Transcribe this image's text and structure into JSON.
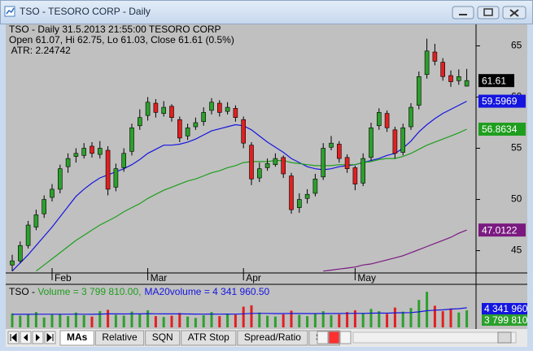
{
  "window": {
    "title": "TSO - TESORO CORP - Daily"
  },
  "tabs": [
    "MAs",
    "Relative",
    "SQN",
    "ATR Stop",
    "Spread/Ratio",
    "She"
  ],
  "chart_data": [
    {
      "type": "candlestick",
      "header": [
        "TSO - Daily 31.5.2013 21:55:00  TESORO CORP",
        "Open 61.07, Hi 62.75, Lo 61.03, Close 61.61 (0.5%)",
        " ATR: 2.24742"
      ],
      "categories": [
        null,
        null,
        null,
        null,
        null,
        "Feb",
        null,
        null,
        null,
        null,
        null,
        null,
        null,
        null,
        null,
        null,
        null,
        "Mar",
        null,
        null,
        null,
        null,
        null,
        null,
        null,
        null,
        null,
        null,
        null,
        "Apr",
        null,
        null,
        null,
        null,
        null,
        null,
        null,
        null,
        null,
        null,
        null,
        null,
        null,
        "May",
        null,
        null,
        null,
        null,
        null,
        null,
        null,
        null,
        null,
        null,
        null,
        null,
        null,
        null
      ],
      "open": [
        43.6,
        44,
        45.5,
        47.3,
        48.6,
        50.2,
        51,
        53.2,
        54.2,
        54.3,
        55.2,
        54.4,
        54.8,
        51.2,
        53.1,
        54.7,
        57.2,
        58.2,
        59.4,
        58.4,
        59.1,
        57.8,
        56.2,
        57.1,
        57.6,
        58.7,
        59.4,
        58.6,
        58.9,
        57.8,
        55.3,
        52.1,
        53.1,
        53.4,
        54.1,
        52.3,
        49.2,
        50.1,
        50.6,
        52.2,
        55.1,
        55.4,
        54.1,
        53.1,
        51.6,
        54.1,
        57.2,
        58.4,
        56.8,
        54.6,
        57.1,
        59.2,
        62.2,
        64.4,
        63.4,
        62.1,
        61.6,
        61.07
      ],
      "high": [
        44.6,
        45.9,
        47.9,
        49,
        50.4,
        51.5,
        53.4,
        54.5,
        55,
        55.5,
        55.6,
        55.7,
        55.2,
        53.5,
        55,
        57.4,
        58.8,
        60,
        59.8,
        59.6,
        59.3,
        58.1,
        57.4,
        58,
        59,
        59.9,
        59.7,
        59.5,
        59.2,
        58.1,
        55.6,
        53.6,
        54,
        54.5,
        54.3,
        52.6,
        50.6,
        51,
        52.5,
        55.5,
        56.2,
        55.7,
        54.4,
        53.3,
        54.5,
        57.5,
        58.9,
        58.7,
        57.1,
        57.4,
        59.4,
        62.5,
        65.7,
        65.2,
        63.8,
        62.6,
        62.7,
        62.75
      ],
      "low": [
        43,
        43.8,
        45.2,
        47,
        48.2,
        49.8,
        50.6,
        52.6,
        53.6,
        54,
        54.1,
        54,
        50.4,
        50.8,
        52.7,
        54.3,
        56.8,
        57.7,
        58,
        58.1,
        57.6,
        55.6,
        55.8,
        56.8,
        57.2,
        58.3,
        58.1,
        58.3,
        57.6,
        55,
        51.4,
        51.7,
        52.8,
        53.2,
        52.1,
        48.6,
        48.7,
        49.6,
        50.3,
        51.9,
        54.8,
        53.6,
        52.6,
        50.9,
        51.3,
        53.8,
        56.8,
        56.6,
        54,
        54.3,
        56.8,
        58.8,
        61.8,
        63.1,
        61.6,
        61,
        61.2,
        61.03
      ],
      "close": [
        44,
        45.5,
        47.5,
        48.5,
        50,
        51,
        53,
        54,
        54.5,
        55,
        54.5,
        55,
        51,
        53,
        54.5,
        57,
        58,
        59.5,
        58.5,
        59,
        58,
        56,
        57,
        57.5,
        58.5,
        59.5,
        58.5,
        59,
        58,
        55.5,
        52,
        53,
        53.5,
        54,
        52.5,
        49,
        50,
        50.5,
        52,
        55,
        55.5,
        54,
        53,
        51.5,
        54,
        57,
        58.5,
        57,
        54.5,
        57,
        59,
        62,
        64.5,
        63.5,
        62,
        61.5,
        62,
        61.61
      ],
      "up_color": "#2ca02c",
      "down_color": "#e02020",
      "last_color": "#000000",
      "series": [
        {
          "color": "#1515e0",
          "values": [
            43.0,
            43.8,
            44.6,
            45.5,
            46.4,
            47.3,
            48.3,
            49.3,
            50.3,
            51.0,
            51.6,
            52.1,
            52.4,
            52.7,
            53.0,
            53.4,
            53.9,
            54.5,
            54.9,
            55.3,
            55.3,
            55.4,
            55.6,
            55.9,
            56.3,
            56.7,
            56.9,
            57.1,
            57.3,
            57.2,
            56.8,
            56.2,
            55.6,
            55.1,
            54.6,
            54.0,
            53.6,
            53.2,
            53.0,
            52.9,
            53.0,
            53.2,
            53.3,
            53.4,
            53.6,
            53.8,
            54.0,
            54.3,
            54.5,
            55.0,
            55.7,
            56.6,
            57.3,
            57.9,
            58.4,
            58.8,
            59.2,
            59.5969
          ]
        },
        {
          "color": "#1e9e1e",
          "values": [
            null,
            null,
            null,
            43.0,
            43.6,
            44.2,
            44.8,
            45.4,
            46.0,
            46.5,
            47.0,
            47.5,
            47.9,
            48.3,
            48.8,
            49.2,
            49.6,
            50.1,
            50.5,
            50.9,
            51.2,
            51.5,
            51.8,
            52.0,
            52.3,
            52.6,
            52.8,
            53.1,
            53.3,
            53.6,
            53.7,
            53.7,
            53.7,
            53.8,
            53.8,
            53.6,
            53.5,
            53.4,
            53.3,
            53.3,
            53.3,
            53.4,
            53.4,
            53.4,
            53.6,
            53.7,
            53.9,
            54.0,
            54.0,
            54.2,
            54.5,
            54.9,
            55.3,
            55.6,
            55.9,
            56.2,
            56.5,
            56.8634
          ]
        },
        {
          "color": "#7a1a80",
          "values": [
            null,
            null,
            null,
            null,
            null,
            null,
            null,
            null,
            null,
            null,
            null,
            null,
            null,
            null,
            null,
            null,
            null,
            null,
            null,
            null,
            null,
            null,
            null,
            null,
            null,
            null,
            null,
            null,
            null,
            null,
            null,
            null,
            null,
            null,
            null,
            null,
            null,
            null,
            null,
            43.0,
            43.1,
            43.2,
            43.3,
            43.4,
            43.6,
            43.7,
            43.9,
            44.1,
            44.3,
            44.5,
            44.8,
            45.1,
            45.4,
            45.7,
            46.0,
            46.3,
            46.7,
            47.0122
          ]
        }
      ],
      "ylim": [
        42.9,
        67.1
      ],
      "yticks": [
        45,
        50,
        55,
        60,
        65
      ],
      "grid": false
    },
    {
      "type": "bar",
      "title_parts": [
        "TSO - ",
        "Volume = 3 799 810.00,",
        "MA20volume = 4 341 960.50"
      ],
      "series": [
        {
          "type": "bar",
          "color": "#2ca02c",
          "values": [
            3100000,
            2600000,
            2900000,
            3400000,
            2200000,
            2800000,
            3000000,
            2500000,
            3300000,
            2700000,
            2400000,
            3600000,
            3900000,
            2800000,
            2600000,
            3500000,
            2900000,
            3800000,
            2500000,
            2300000,
            2600000,
            3200000,
            2400000,
            2100000,
            2700000,
            3400000,
            2500000,
            2900000,
            2800000,
            4600000,
            4900000,
            3300000,
            2600000,
            2400000,
            2900000,
            3700000,
            2800000,
            2500000,
            3100000,
            3600000,
            2700000,
            2900000,
            3400000,
            3800000,
            3200000,
            4100000,
            3600000,
            3000000,
            4400000,
            3500000,
            4300000,
            6100000,
            7900000,
            4800000,
            3600000,
            4200000,
            3300000,
            3799810
          ],
          "value_labels": [
            null,
            null,
            null,
            null,
            null,
            null,
            null,
            null,
            null,
            null,
            null,
            null,
            null,
            null,
            null,
            null,
            null,
            null,
            null,
            null,
            null,
            null,
            null,
            null,
            null,
            null,
            null,
            null,
            null,
            null,
            null,
            null,
            null,
            null,
            null,
            null,
            null,
            null,
            null,
            null,
            null,
            null,
            null,
            null,
            null,
            null,
            null,
            null,
            null,
            null,
            null,
            null,
            null,
            null,
            null,
            null,
            null,
            "3 799 810"
          ]
        },
        {
          "type": "line",
          "color": "#1515e0",
          "values": [
            2900000,
            2900000,
            2910000,
            2930000,
            2920000,
            2920000,
            2930000,
            2920000,
            2940000,
            2930000,
            2910000,
            2950000,
            3000000,
            2990000,
            2980000,
            3010000,
            3000000,
            3050000,
            3020000,
            3000000,
            2990000,
            3000000,
            2980000,
            2950000,
            2940000,
            2960000,
            2940000,
            2950000,
            2940000,
            3020000,
            3100000,
            3120000,
            3100000,
            3070000,
            3070000,
            3100000,
            3080000,
            3060000,
            3070000,
            3090000,
            3070000,
            3080000,
            3100000,
            3120000,
            3110000,
            3150000,
            3170000,
            3160000,
            3220000,
            3240000,
            3290000,
            3440000,
            3700000,
            3820000,
            3900000,
            4050000,
            4150000,
            4341960.5
          ],
          "value_labels": [
            null,
            null,
            null,
            null,
            null,
            null,
            null,
            null,
            null,
            null,
            null,
            null,
            null,
            null,
            null,
            null,
            null,
            null,
            null,
            null,
            null,
            null,
            null,
            null,
            null,
            null,
            null,
            null,
            null,
            null,
            null,
            null,
            null,
            null,
            null,
            null,
            null,
            null,
            null,
            null,
            null,
            null,
            null,
            null,
            null,
            null,
            null,
            null,
            null,
            null,
            null,
            null,
            null,
            null,
            null,
            null,
            null,
            "4 341 960"
          ]
        }
      ],
      "ylim": [
        0,
        9200000
      ]
    }
  ]
}
